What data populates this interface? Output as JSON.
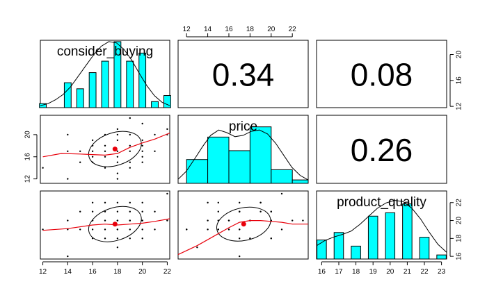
{
  "chart_data": {
    "type": "scatter-matrix",
    "variables": [
      "consider_buying",
      "price",
      "product_quality"
    ],
    "correlations": [
      {
        "row": 0,
        "col": 1,
        "label": "0.34"
      },
      {
        "row": 0,
        "col": 2,
        "label": "0.08"
      },
      {
        "row": 1,
        "col": 2,
        "label": "0.26"
      }
    ],
    "ranges": {
      "consider_buying": [
        11.8,
        22.2
      ],
      "price": [
        11.2,
        23.5
      ],
      "product_quality": [
        15.7,
        23.3
      ]
    },
    "ticks": {
      "consider_buying": [
        "12",
        "14",
        "16",
        "18",
        "20",
        "22"
      ],
      "price": [
        "12",
        "14",
        "16",
        "18",
        "20",
        "22"
      ],
      "price_left": [
        "12",
        "16",
        "20"
      ],
      "product_quality_bottom": [
        "16",
        "17",
        "18",
        "19",
        "20",
        "21",
        "22",
        "23"
      ],
      "product_quality_right": [
        "16",
        "18",
        "20",
        "22"
      ],
      "consider_buying_right": [
        "12",
        "16",
        "20"
      ]
    },
    "histograms": {
      "consider_buying": {
        "centers": [
          12,
          14,
          15,
          16,
          17,
          18,
          19,
          20,
          21,
          22
        ],
        "heights": [
          0.06,
          0.37,
          0.28,
          0.52,
          0.69,
          0.98,
          0.69,
          0.81,
          0.09,
          0.18
        ],
        "density": [
          0.03,
          0.06,
          0.12,
          0.2,
          0.32,
          0.48,
          0.64,
          0.8,
          0.93,
          1.0,
          0.98,
          0.88,
          0.72,
          0.52,
          0.33,
          0.18,
          0.08,
          0.03
        ]
      },
      "price": {
        "edges": [
          12,
          14,
          16,
          18,
          20,
          22,
          24
        ],
        "heights": [
          0.35,
          0.68,
          0.48,
          0.83,
          0.2,
          0.05
        ],
        "density": [
          0.06,
          0.18,
          0.36,
          0.55,
          0.72,
          0.8,
          0.76,
          0.7,
          0.72,
          0.78,
          0.8,
          0.74,
          0.6,
          0.42,
          0.24,
          0.12,
          0.05
        ]
      },
      "product_quality": {
        "centers": [
          16,
          17,
          18,
          19,
          20,
          21,
          22,
          23
        ],
        "heights": [
          0.28,
          0.39,
          0.19,
          0.63,
          0.68,
          0.81,
          0.32,
          0.06
        ],
        "density": [
          0.2,
          0.28,
          0.33,
          0.37,
          0.42,
          0.52,
          0.64,
          0.76,
          0.84,
          0.88,
          0.86,
          0.76,
          0.6,
          0.4,
          0.22,
          0.1
        ]
      }
    },
    "points": {
      "consider_buying": [
        12,
        14,
        14,
        14,
        15,
        15,
        16,
        16,
        16,
        16,
        16,
        17,
        17,
        17,
        17,
        17,
        18,
        18,
        18,
        18,
        18,
        18,
        18,
        18,
        19,
        19,
        19,
        19,
        19,
        19,
        20,
        20,
        20,
        20,
        20,
        20,
        21,
        21,
        22,
        22
      ],
      "price": [
        14,
        20,
        17,
        12,
        15,
        17,
        18,
        17,
        16,
        15,
        19,
        20,
        16,
        18,
        14,
        17,
        12,
        17,
        13,
        15,
        19,
        20,
        21,
        16,
        18,
        17,
        15,
        14,
        20,
        23,
        19,
        17,
        16,
        22,
        15,
        18,
        20,
        17,
        20,
        21
      ],
      "product_quality": [
        19,
        20,
        16,
        19,
        19,
        21,
        18,
        19,
        20,
        21,
        22,
        21,
        19,
        18,
        20,
        22,
        19,
        21,
        17,
        20,
        22,
        18,
        19,
        20,
        20,
        21,
        19,
        22,
        18,
        20,
        21,
        18,
        19,
        20,
        22,
        20,
        21,
        19,
        20,
        23
      ]
    },
    "means": {
      "consider_buying": 17.8,
      "price": 17.4,
      "product_quality": 19.6
    },
    "loess": {
      "price_vs_consider": {
        "x": [
          12,
          13.5,
          15,
          16,
          17,
          18,
          19,
          20,
          21,
          22.2
        ],
        "y": [
          16.0,
          16.6,
          16.5,
          16.4,
          16.3,
          16.6,
          17.7,
          18.5,
          19.2,
          20.3
        ]
      },
      "quality_vs_consider": {
        "x": [
          12,
          14,
          16,
          17,
          18,
          19,
          20,
          21,
          22.2
        ],
        "y": [
          18.9,
          19.1,
          19.5,
          19.6,
          19.5,
          19.6,
          19.7,
          19.9,
          20.2
        ]
      },
      "quality_vs_price": {
        "x": [
          11.2,
          13,
          14.5,
          16,
          17,
          18,
          19,
          20,
          21,
          22,
          23.5
        ],
        "y": [
          16.2,
          17.2,
          18.2,
          19.2,
          19.8,
          20.0,
          20.0,
          19.9,
          19.8,
          19.6,
          19.6
        ]
      }
    },
    "colors": {
      "bar": "#00ffff",
      "smooth": "#e8000b",
      "mean": "#e8000b",
      "frame": "#000000"
    }
  }
}
